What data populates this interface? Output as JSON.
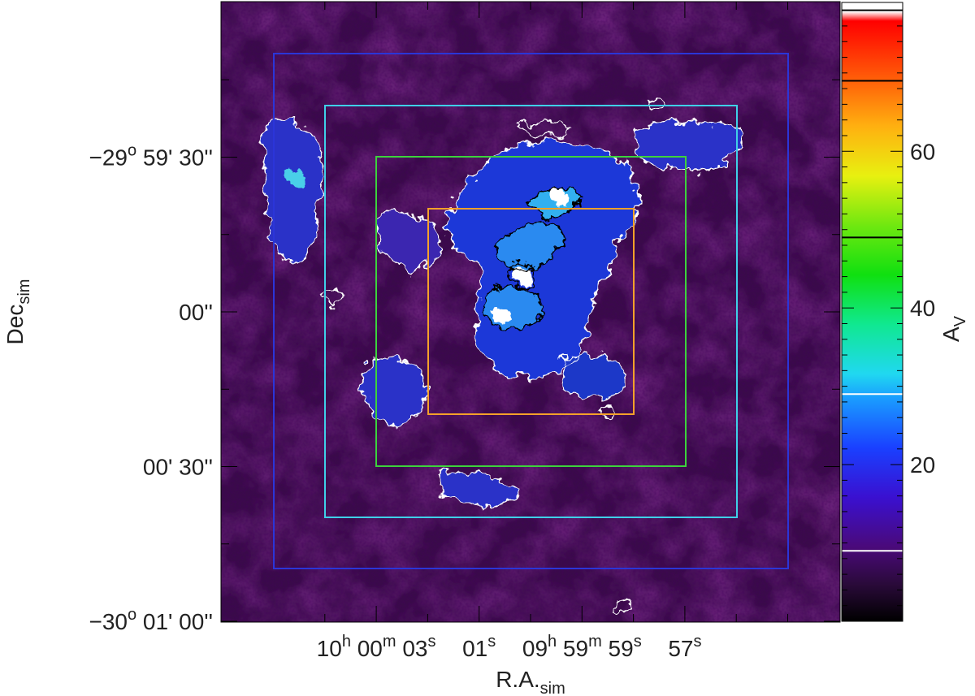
{
  "chart_data": {
    "type": "heatmap",
    "xlabel": "R.A.",
    "xlabel_sub": "sim",
    "ylabel": "Dec",
    "ylabel_sub": "sim",
    "x_ticks": [
      {
        "parts": [
          [
            "10",
            "h"
          ],
          [
            " 00",
            "m"
          ],
          [
            " 03",
            "s"
          ]
        ],
        "ra_sec": 3
      },
      {
        "parts": [
          [
            "01",
            "s"
          ]
        ],
        "ra_sec": 1
      },
      {
        "parts": [
          [
            "09",
            "h"
          ],
          [
            " 59",
            "m"
          ],
          [
            " 59",
            "s"
          ]
        ],
        "ra_sec": -1
      },
      {
        "parts": [
          [
            "57",
            "s"
          ]
        ],
        "ra_sec": -3
      }
    ],
    "y_ticks": [
      {
        "parts": [
          [
            "−29",
            "o"
          ],
          [
            " 59' 30''",
            ""
          ]
        ],
        "dec_arcsec": 30
      },
      {
        "parts": [
          [
            "00''",
            ""
          ]
        ],
        "dec_arcsec": 0
      },
      {
        "parts": [
          [
            "00' 30''",
            ""
          ]
        ],
        "dec_arcsec": -30
      },
      {
        "parts": [
          [
            "−30",
            "o"
          ],
          [
            " 01' 00''",
            ""
          ]
        ],
        "dec_arcsec": -60
      }
    ],
    "colorbar": {
      "label": "A",
      "label_sub": "V",
      "ticks": [
        20,
        40,
        60
      ],
      "range": [
        0,
        79
      ],
      "marker_lines": [
        9,
        29,
        49,
        69,
        78
      ]
    },
    "boxes": [
      {
        "name": "outer",
        "color": "#2b35d8",
        "half_size_arcsec": 50
      },
      {
        "name": "second",
        "color": "#3fd0e8",
        "half_size_arcsec": 40
      },
      {
        "name": "third",
        "color": "#3dd23d",
        "half_size_arcsec": 30
      },
      {
        "name": "inner",
        "color": "#f5a12a",
        "half_size_arcsec": 20
      }
    ]
  }
}
